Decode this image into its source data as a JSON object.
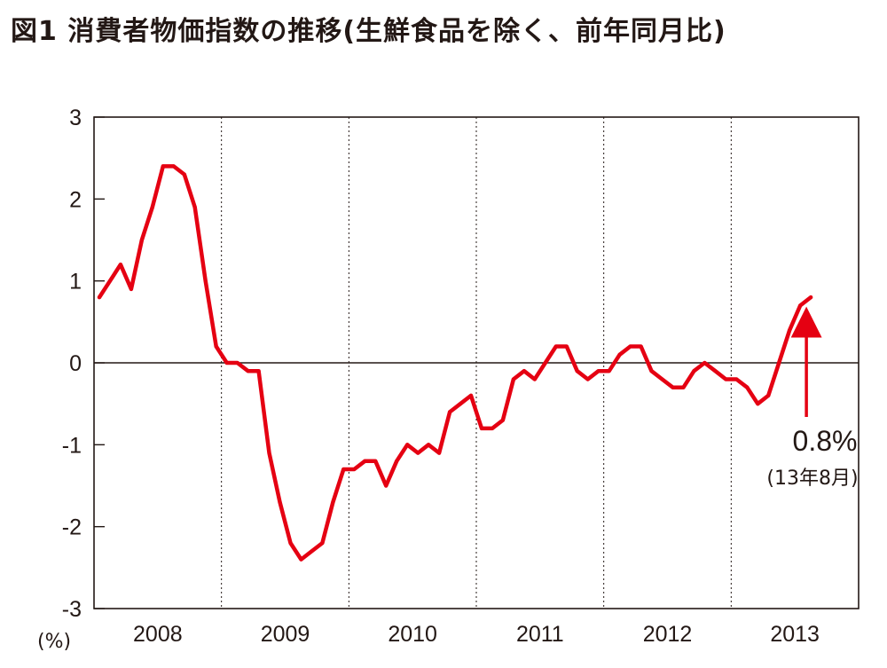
{
  "title": "図1 消費者物価指数の推移(生鮮食品を除く、前年同月比)",
  "chart_data": {
    "type": "line",
    "title": "図1 消費者物価指数の推移(生鮮食品を除く、前年同月比)",
    "xlabel": "",
    "ylabel": "(%)",
    "ylim": [
      -3,
      3
    ],
    "yticks": [
      3,
      2,
      1,
      0,
      -1,
      -2,
      -3
    ],
    "ytick_labels": [
      "3",
      "2",
      "1",
      "0",
      "-1",
      "-2",
      "-3"
    ],
    "xtick_labels": [
      "2008",
      "2009",
      "2010",
      "2011",
      "2012",
      "2013"
    ],
    "year_boundaries_dotted": true,
    "grid": false,
    "line_color": "#e50012",
    "x_start": "2008-01",
    "x_end": "2013-08",
    "series": [
      {
        "values": [
          0.8,
          1.0,
          1.2,
          0.9,
          1.5,
          1.9,
          2.4,
          2.4,
          2.3,
          1.9,
          1.0,
          0.2,
          0.0,
          0.0,
          -0.1,
          -0.1,
          -1.1,
          -1.7,
          -2.2,
          -2.4,
          -2.3,
          -2.2,
          -1.7,
          -1.3,
          -1.3,
          -1.2,
          -1.2,
          -1.5,
          -1.2,
          -1.0,
          -1.1,
          -1.0,
          -1.1,
          -0.6,
          -0.5,
          -0.4,
          -0.8,
          -0.8,
          -0.7,
          -0.2,
          -0.1,
          -0.2,
          0.0,
          0.2,
          0.2,
          -0.1,
          -0.2,
          -0.1,
          -0.1,
          0.1,
          0.2,
          0.2,
          -0.1,
          -0.2,
          -0.3,
          -0.3,
          -0.1,
          0.0,
          -0.1,
          -0.2,
          -0.2,
          -0.3,
          -0.5,
          -0.4,
          0.0,
          0.4,
          0.7,
          0.8
        ]
      }
    ],
    "annotation": {
      "value_label": "0.8%",
      "date_label": "(13年8月)"
    }
  }
}
